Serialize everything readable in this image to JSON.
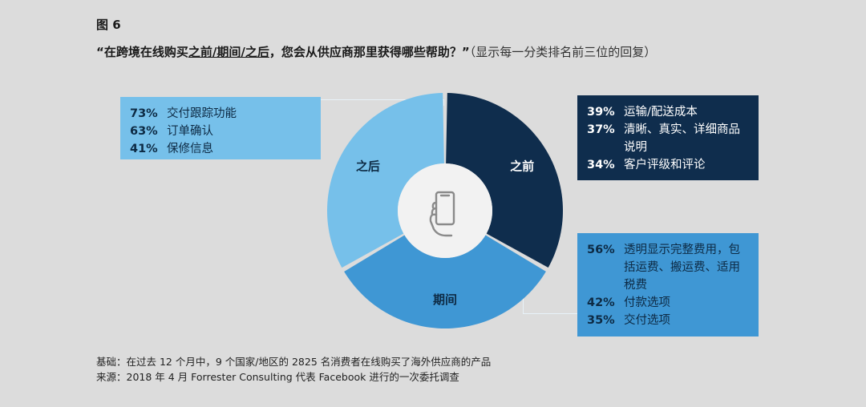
{
  "figure_label": "图 6",
  "title": {
    "q_open": "“在跨境在线购买",
    "q_underlined": "之前/期间/之后",
    "q_close": "，您会从供应商那里获得哪些帮助？”",
    "note": "（显示每一分类排名前三位的回复）"
  },
  "boxes": {
    "after": [
      {
        "pct": "73%",
        "text": "交付跟踪功能"
      },
      {
        "pct": "63%",
        "text": "订单确认"
      },
      {
        "pct": "41%",
        "text": "保修信息"
      }
    ],
    "before": [
      {
        "pct": "39%",
        "text": "运输/配送成本"
      },
      {
        "pct": "37%",
        "text": "清晰、真实、详细商品说明"
      },
      {
        "pct": "34%",
        "text": "客户评级和评论"
      }
    ],
    "during": [
      {
        "pct": "56%",
        "text": "透明显示完整费用，包括运费、搬运费、适用税费"
      },
      {
        "pct": "42%",
        "text": "付款选项"
      },
      {
        "pct": "35%",
        "text": "交付选项"
      }
    ]
  },
  "chart_data": {
    "type": "pie",
    "donut": true,
    "categories": [
      "之前",
      "期间",
      "之后"
    ],
    "values": [
      33.33,
      33.33,
      33.34
    ],
    "colors": [
      "#0f2d4d",
      "#3f97d4",
      "#76c0ea"
    ],
    "center_icon": "hand-holding-phone-icon"
  },
  "footer": {
    "basis": "基础：在过去 12 个月中，9 个国家/地区的 2825 名消费者在线购买了海外供应商的产品",
    "source": "来源：2018 年 4 月 Forrester Consulting 代表 Facebook 进行的一次委托调查"
  }
}
